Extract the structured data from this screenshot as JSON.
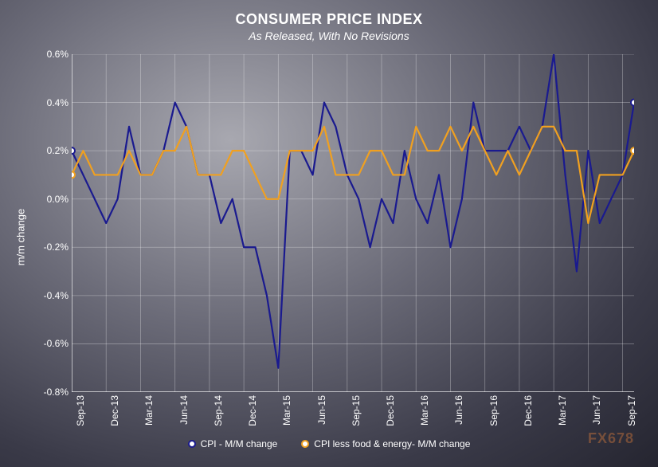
{
  "chart": {
    "type": "line",
    "title": "CONSUMER PRICE INDEX",
    "subtitle": "As Released, With No Revisions",
    "title_fontsize": 18,
    "subtitle_fontsize": 14,
    "ylabel": "m/m change",
    "label_fontsize": 13,
    "ylim": [
      -0.8,
      0.6
    ],
    "ytick_step": 0.2,
    "yticks": [
      "0.6%",
      "0.4%",
      "0.2%",
      "0.0%",
      "-0.2%",
      "-0.4%",
      "-0.6%",
      "-0.8%"
    ],
    "ytick_values": [
      0.6,
      0.4,
      0.2,
      0.0,
      -0.2,
      -0.4,
      -0.6,
      -0.8
    ],
    "xticks": [
      "Sep-13",
      "Dec-13",
      "Mar-14",
      "Jun-14",
      "Sep-14",
      "Dec-14",
      "Mar-15",
      "Jun-15",
      "Sep-15",
      "Dec-15",
      "Mar-16",
      "Jun-16",
      "Sep-16",
      "Dec-16",
      "Mar-17",
      "Jun-17",
      "Sep-17"
    ],
    "xtick_positions": [
      0,
      3,
      6,
      9,
      12,
      15,
      18,
      21,
      24,
      27,
      30,
      33,
      36,
      39,
      42,
      45,
      48
    ],
    "n_points": 50,
    "grid_color": "rgba(255,255,255,0.35)",
    "grid_width": 0.8,
    "axis_color": "#ffffff",
    "tick_fontsize": 12,
    "series": [
      {
        "name": "CPI - M/M change",
        "color": "#1a1a8f",
        "marker_border": "#1a1a8f",
        "marker_fill": "#ffffff",
        "marker_size": 4,
        "line_width": 2.2,
        "values": [
          0.2,
          0.1,
          0.0,
          -0.1,
          0.0,
          0.3,
          0.1,
          0.1,
          0.2,
          0.4,
          0.3,
          0.1,
          0.1,
          -0.1,
          0.0,
          -0.2,
          -0.2,
          -0.4,
          -0.7,
          0.2,
          0.2,
          0.1,
          0.4,
          0.3,
          0.1,
          0.0,
          -0.2,
          0.0,
          -0.1,
          0.2,
          0.0,
          -0.1,
          0.1,
          -0.2,
          0.0,
          0.4,
          0.2,
          0.2,
          0.2,
          0.3,
          0.2,
          0.3,
          0.6,
          0.1,
          -0.3,
          0.2,
          -0.1,
          0.0,
          0.1,
          0.4
        ]
      },
      {
        "name": "CPI less food & energy- M/M change",
        "color": "#f0a020",
        "marker_border": "#f0a020",
        "marker_fill": "#ffffff",
        "marker_size": 4,
        "line_width": 2.2,
        "values": [
          0.1,
          0.2,
          0.1,
          0.1,
          0.1,
          0.2,
          0.1,
          0.1,
          0.2,
          0.2,
          0.3,
          0.1,
          0.1,
          0.1,
          0.2,
          0.2,
          0.1,
          0.0,
          0.0,
          0.2,
          0.2,
          0.2,
          0.3,
          0.1,
          0.1,
          0.1,
          0.2,
          0.2,
          0.1,
          0.1,
          0.3,
          0.2,
          0.2,
          0.3,
          0.2,
          0.3,
          0.2,
          0.1,
          0.2,
          0.1,
          0.2,
          0.3,
          0.3,
          0.2,
          0.2,
          -0.1,
          0.1,
          0.1,
          0.1,
          0.2
        ]
      }
    ]
  },
  "legend": {
    "items": [
      {
        "label": "CPI - M/M change",
        "color": "#1a1a8f"
      },
      {
        "label": "CPI less food & energy- M/M change",
        "color": "#f0a020"
      }
    ]
  },
  "watermark": "FX678"
}
